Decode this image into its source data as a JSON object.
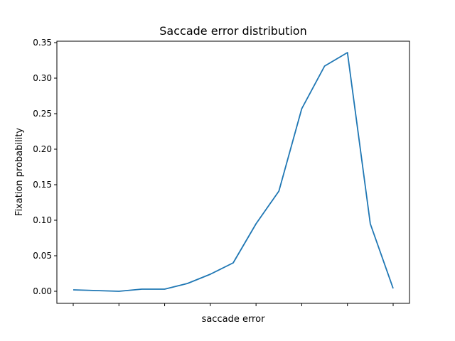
{
  "chart_data": {
    "type": "line",
    "title": "Saccade error distribution",
    "xlabel": "saccade error",
    "ylabel": "Fixation probability",
    "ylim": [
      -0.017,
      0.352
    ],
    "yticks": [
      0.0,
      0.05,
      0.1,
      0.15,
      0.2,
      0.25,
      0.3,
      0.35
    ],
    "ytick_labels": [
      "0.00",
      "0.05",
      "0.10",
      "0.15",
      "0.20",
      "0.25",
      "0.30",
      "0.35"
    ],
    "xtick_count": 8,
    "grid": false,
    "legend": "none",
    "color": "#1f77b4",
    "series": [
      {
        "values": [
          0.002,
          0.001,
          0.0,
          0.003,
          0.003,
          0.011,
          0.024,
          0.04,
          0.095,
          0.141,
          0.257,
          0.317,
          0.336,
          0.095,
          0.004
        ]
      }
    ]
  }
}
